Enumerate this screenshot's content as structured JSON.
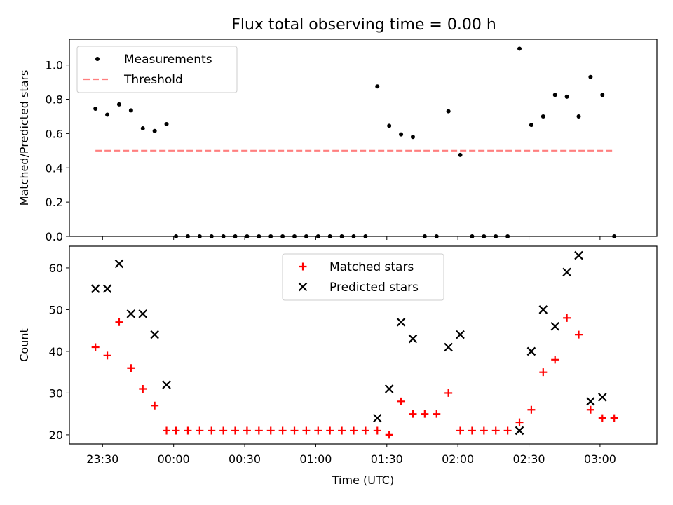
{
  "figure_title": "Flux total observing time = 0.00 h",
  "chart_data": [
    {
      "type": "scatter",
      "title": "Flux total observing time = 0.00 h",
      "xlabel": "",
      "ylabel": "Matched/Predicted stars",
      "xlim": [
        "23:16",
        "03:24"
      ],
      "ylim": [
        0,
        1.15
      ],
      "yticks": [
        0.0,
        0.2,
        0.4,
        0.6,
        0.8,
        1.0
      ],
      "ytick_labels": [
        "0.0",
        "0.2",
        "0.4",
        "0.6",
        "0.8",
        "1.0"
      ],
      "legend_position": "upper-left",
      "series": [
        {
          "name": "Measurements",
          "marker": "dot",
          "color": "#000000",
          "x": [
            "23:27",
            "23:32",
            "23:37",
            "23:42",
            "23:47",
            "23:52",
            "23:57",
            "00:01",
            "00:06",
            "00:11",
            "00:16",
            "00:21",
            "00:26",
            "00:31",
            "00:36",
            "00:41",
            "00:46",
            "00:51",
            "00:56",
            "01:01",
            "01:06",
            "01:11",
            "01:16",
            "01:21",
            "01:26",
            "01:31",
            "01:36",
            "01:41",
            "01:46",
            "01:51",
            "01:56",
            "02:01",
            "02:06",
            "02:11",
            "02:16",
            "02:21",
            "02:26",
            "02:31",
            "02:36",
            "02:41",
            "02:46",
            "02:51",
            "02:56",
            "03:01",
            "03:06"
          ],
          "y": [
            0.745,
            0.71,
            0.77,
            0.735,
            0.63,
            0.615,
            0.655,
            0,
            0,
            0,
            0,
            0,
            0,
            0,
            0,
            0,
            0,
            0,
            0,
            0,
            0,
            0,
            0,
            0,
            0.875,
            0.645,
            0.595,
            0.58,
            0,
            0,
            0.73,
            0.475,
            0,
            0,
            0,
            0,
            1.095,
            0.65,
            0.7,
            0.825,
            0.815,
            0.7,
            0.93,
            0.825,
            0
          ]
        },
        {
          "name": "Threshold",
          "marker": "dashed-line",
          "color": "#ff7f7f",
          "x": [
            "23:27",
            "03:06"
          ],
          "y": [
            0.5,
            0.5
          ]
        }
      ]
    },
    {
      "type": "scatter",
      "title": "",
      "xlabel": "Time (UTC)",
      "ylabel": "Count",
      "xlim": [
        "23:16",
        "03:24"
      ],
      "ylim": [
        17.8,
        65.2
      ],
      "yticks": [
        20,
        30,
        40,
        50,
        60
      ],
      "ytick_labels": [
        "20",
        "30",
        "40",
        "50",
        "60"
      ],
      "xticks": [
        "23:30",
        "00:00",
        "00:30",
        "01:00",
        "01:30",
        "02:00",
        "02:30",
        "03:00"
      ],
      "xtick_labels": [
        "23:30",
        "00:00",
        "00:30",
        "01:00",
        "01:30",
        "02:00",
        "02:30",
        "03:00"
      ],
      "legend_position": "upper-center",
      "series": [
        {
          "name": "Matched stars",
          "marker": "plus",
          "color": "#ff0000",
          "x": [
            "23:27",
            "23:32",
            "23:37",
            "23:42",
            "23:47",
            "23:52",
            "23:57",
            "00:01",
            "00:06",
            "00:11",
            "00:16",
            "00:21",
            "00:26",
            "00:31",
            "00:36",
            "00:41",
            "00:46",
            "00:51",
            "00:56",
            "01:01",
            "01:06",
            "01:11",
            "01:16",
            "01:21",
            "01:26",
            "01:31",
            "01:36",
            "01:41",
            "01:46",
            "01:51",
            "01:56",
            "02:01",
            "02:06",
            "02:11",
            "02:16",
            "02:21",
            "02:26",
            "02:31",
            "02:36",
            "02:41",
            "02:46",
            "02:51",
            "02:56",
            "03:01",
            "03:06"
          ],
          "y": [
            41,
            39,
            47,
            36,
            31,
            27,
            21,
            21,
            21,
            21,
            21,
            21,
            21,
            21,
            21,
            21,
            21,
            21,
            21,
            21,
            21,
            21,
            21,
            21,
            21,
            20,
            28,
            25,
            25,
            25,
            30,
            21,
            21,
            21,
            21,
            21,
            23,
            26,
            35,
            38,
            48,
            44,
            26,
            24,
            24
          ]
        },
        {
          "name": "Predicted stars",
          "marker": "x",
          "color": "#000000",
          "x": [
            "23:27",
            "23:32",
            "23:37",
            "23:42",
            "23:47",
            "23:52",
            "23:57",
            "01:26",
            "01:31",
            "01:36",
            "01:41",
            "01:56",
            "02:01",
            "02:26",
            "02:31",
            "02:36",
            "02:41",
            "02:46",
            "02:51",
            "02:56",
            "03:01"
          ],
          "y": [
            55,
            55,
            61,
            49,
            49,
            44,
            32,
            24,
            31,
            47,
            43,
            41,
            44,
            21,
            40,
            50,
            46,
            59,
            63,
            28,
            29
          ]
        }
      ]
    }
  ]
}
